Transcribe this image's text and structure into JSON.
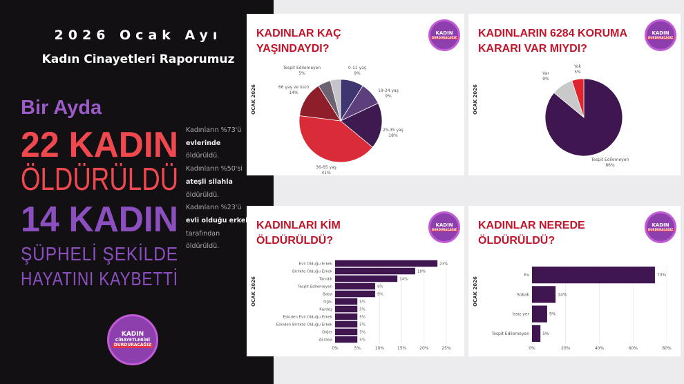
{
  "left": {
    "year": "2026 Ocak Ayı",
    "subtitle": "Kadın Cinayetleri Raporumuz",
    "bir_ayda": "Bir Ayda",
    "killed_count": "22 KADIN",
    "killed": "ÖLDÜRÜLDÜ",
    "suspicious_count": "14 KADIN",
    "suspicious_1": "ŞÜPHELİ ŞEKİLDE",
    "suspicious_2": "HAYATINI KAYBETTİ",
    "side": [
      {
        "t": "Kadınların %73'ü ",
        "b": "evlerinde"
      },
      {
        "t": " öldürüldü. Kadınların %50'si ",
        "b": "ateşli silahla"
      },
      {
        "t": " öldürüldü. Kadınların %23'ü ",
        "b": "evli olduğu erkek"
      },
      {
        "t": " tarafından öldürüldü.",
        "b": ""
      }
    ]
  },
  "logo": {
    "line1": "KADIN",
    "line2": "CİNAYETLERİNİ",
    "line3": "DURDURACAĞIZ"
  },
  "period_label": "OCAK 2026",
  "colors": {
    "red": "#c0152a",
    "purple": "#3f1650"
  },
  "chart_data": [
    {
      "type": "pie",
      "title": "KADINLAR KAÇ YAŞINDAYDI?",
      "slices": [
        {
          "label": "0-11 yaş",
          "value": 9,
          "color": "#3e3670"
        },
        {
          "label": "19-24 yaş",
          "value": 9,
          "color": "#5d3f7d"
        },
        {
          "label": "25-35 yaş",
          "value": 18,
          "color": "#3d1a50"
        },
        {
          "label": "36-65 yaş",
          "value": 41,
          "color": "#d92b38"
        },
        {
          "label": "66 yaş ve üstü",
          "value": 14,
          "color": "#8e1f2a"
        },
        {
          "label": "Tespit Edilemeyen",
          "value": 5,
          "color": "#6c6272"
        }
      ]
    },
    {
      "type": "pie",
      "title": "KADINLARIN 6284 KORUMA KARARI VAR MIYDI?",
      "slices": [
        {
          "label": "Tespit Edilemeyen",
          "value": 86,
          "color": "#3f1650"
        },
        {
          "label": "Var",
          "value": 9,
          "color": "#c9c9c9"
        },
        {
          "label": "Yok",
          "value": 5,
          "color": "#e0242f"
        }
      ]
    },
    {
      "type": "bar",
      "orientation": "horizontal",
      "title": "KADINLARI KİM ÖLDÜRÜLDÜ?",
      "categories": [
        "Evli Olduğu Erkek",
        "Birlikte Olduğu Erkek",
        "Tanıdık",
        "Tespit Edilemeyen",
        "Baba",
        "Oğlu",
        "Kardeş",
        "Eskiden Evli Olduğu Erkek",
        "Eskiden Birlikte Olduğu Erkek",
        "Diğer",
        "Akraba"
      ],
      "values": [
        23,
        18,
        14,
        9,
        9,
        5,
        5,
        5,
        5,
        5,
        5
      ],
      "xlim": [
        0,
        25
      ],
      "ticks": [
        "0%",
        "5%",
        "10%",
        "15%",
        "20%",
        "25%"
      ],
      "grid": true
    },
    {
      "type": "bar",
      "orientation": "horizontal",
      "title": "KADINLAR NEREDE ÖLDÜRÜLDÜ?",
      "categories": [
        "Ev",
        "Sokak",
        "Issız yer",
        "Tespit Edilemeyen"
      ],
      "values": [
        73,
        14,
        9,
        5
      ],
      "xlim": [
        0,
        80
      ],
      "ticks": [
        "0%",
        "20%",
        "40%",
        "60%",
        "80%"
      ],
      "grid": true
    }
  ]
}
